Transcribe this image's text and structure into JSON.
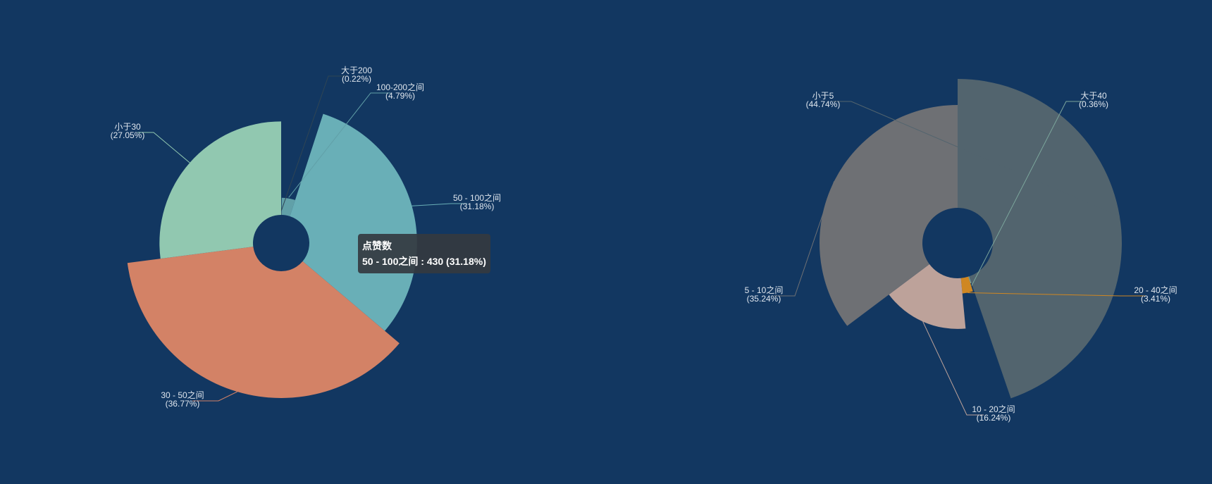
{
  "background": "#123761",
  "chart_data": [
    {
      "type": "pie",
      "rose_type": "radius",
      "slices": [
        {
          "label": "大于200",
          "percent_label": "(0.22%)",
          "value": 3,
          "color": "#2f4554"
        },
        {
          "label": "100-200之间",
          "percent_label": "(4.79%)",
          "value": 66,
          "color": "#61a0a8"
        },
        {
          "label": "50 - 100之间",
          "percent_label": "(31.18%)",
          "value": 430,
          "color": "#69afb7"
        },
        {
          "label": "30 - 50之间",
          "percent_label": "(36.77%)",
          "value": 507,
          "color": "#d38266"
        },
        {
          "label": "小于30",
          "percent_label": "(27.05%)",
          "value": 373,
          "color": "#91c8b0"
        }
      ],
      "tooltip": {
        "title": "点赞数",
        "line": "50 - 100之间 : 430 (31.18%)"
      }
    },
    {
      "type": "pie",
      "rose_type": "radius",
      "slices": [
        {
          "label": "小于5",
          "percent_label": "(44.74%)",
          "value": 44.74,
          "color": "#52646e"
        },
        {
          "label": "大于40",
          "percent_label": "(0.36%)",
          "value": 0.36,
          "color": "#7ca69c"
        },
        {
          "label": "20 - 40之间",
          "percent_label": "(3.41%)",
          "value": 3.41,
          "color": "#cf8722"
        },
        {
          "label": "10 - 20之间",
          "percent_label": "(16.24%)",
          "value": 16.24,
          "color": "#bda29a"
        },
        {
          "label": "5 - 10之间",
          "percent_label": "(35.24%)",
          "value": 35.24,
          "color": "#6e7074"
        }
      ]
    }
  ]
}
